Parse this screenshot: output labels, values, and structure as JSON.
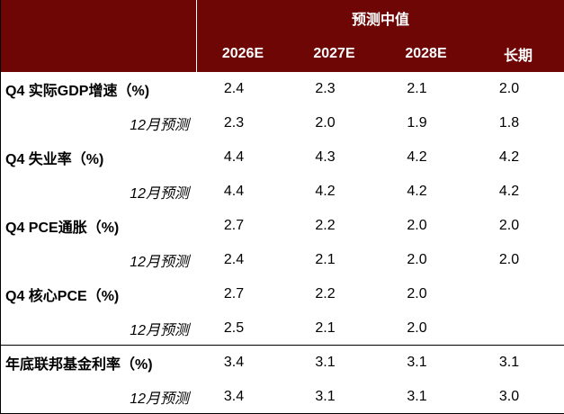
{
  "header": {
    "group": "预测中值",
    "columns": [
      "2026E",
      "2027E",
      "2028E",
      "长期"
    ]
  },
  "table": {
    "rows": [
      {
        "label": "Q4 实际GDP增速（%)",
        "values": [
          "2.4",
          "2.3",
          "2.1",
          "2.0"
        ]
      },
      {
        "label": "12月预测",
        "values": [
          "2.3",
          "2.0",
          "1.9",
          "1.8"
        ]
      },
      {
        "label": "Q4 失业率（%)",
        "values": [
          "4.4",
          "4.3",
          "4.2",
          "4.2"
        ]
      },
      {
        "label": "12月预测",
        "values": [
          "4.4",
          "4.2",
          "4.2",
          "4.2"
        ]
      },
      {
        "label": "Q4 PCE通胀（%)",
        "values": [
          "2.7",
          "2.2",
          "2.0",
          "2.0"
        ]
      },
      {
        "label": "12月预测",
        "values": [
          "2.4",
          "2.1",
          "2.0",
          "2.0"
        ]
      },
      {
        "label": "Q4 核心PCE（%)",
        "values": [
          "2.7",
          "2.2",
          "2.0",
          null
        ]
      },
      {
        "label": "12月预测",
        "values": [
          "2.5",
          "2.1",
          "2.0",
          null
        ]
      },
      {
        "label": "年底联邦基金利率（%)",
        "values": [
          "3.4",
          "3.1",
          "3.1",
          "3.1"
        ]
      },
      {
        "label": "12月预测",
        "values": [
          "3.4",
          "3.1",
          "3.1",
          "3.0"
        ]
      }
    ]
  }
}
